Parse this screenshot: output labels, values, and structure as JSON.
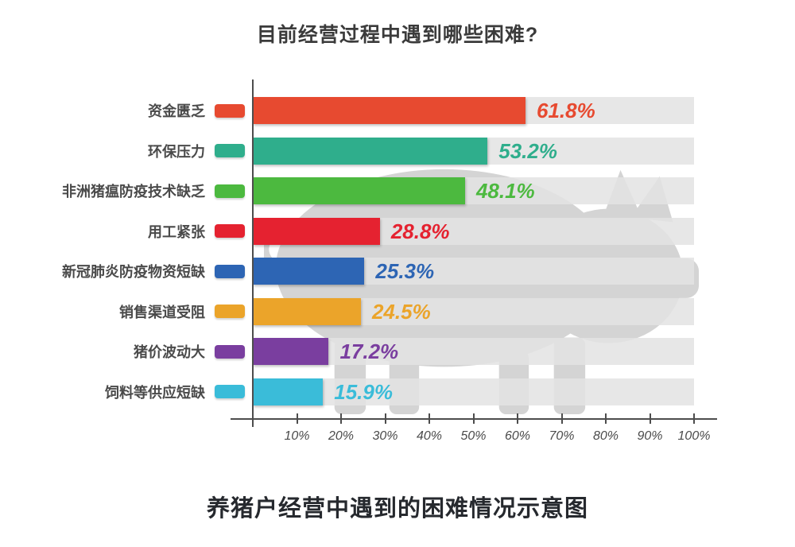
{
  "title": "目前经营过程中遇到哪些困难?",
  "caption": "养猪户经营中遇到的困难情况示意图",
  "watermark_icon": "pig-silhouette",
  "colors": {
    "track": "#e3e3e3",
    "axis": "#4d4d4d",
    "watermark": "#d4d4d4",
    "title_text": "#3b3b3b",
    "caption_text": "#26292e",
    "category_text": "#4a4a4a",
    "tick_text": "#4b4b4b"
  },
  "chart_data": {
    "type": "bar",
    "orientation": "horizontal",
    "title": "目前经营过程中遇到哪些困难?",
    "xlabel": "",
    "ylabel": "",
    "xlim": [
      0,
      100
    ],
    "grid": false,
    "legend_position": "swatch beside each category label",
    "categories": [
      "资金匮乏",
      "环保压力",
      "非洲猪瘟防疫技术缺乏",
      "用工紧张",
      "新冠肺炎防疫物资短缺",
      "销售渠道受阻",
      "猪价波动大",
      "饲料等供应短缺"
    ],
    "values": [
      61.8,
      53.2,
      48.1,
      28.8,
      25.3,
      24.5,
      17.2,
      15.9
    ],
    "value_labels": [
      "61.8%",
      "53.2%",
      "48.1%",
      "28.8%",
      "25.3%",
      "24.5%",
      "17.2%",
      "15.9%"
    ],
    "bar_colors": [
      "#e74a30",
      "#2fae8c",
      "#4cb93f",
      "#e52230",
      "#2d65b4",
      "#eba42a",
      "#7a3e9f",
      "#3abcd9"
    ],
    "x_ticks": [
      "10%",
      "20%",
      "30%",
      "40%",
      "50%",
      "60%",
      "70%",
      "80%",
      "90%",
      "100%"
    ]
  }
}
